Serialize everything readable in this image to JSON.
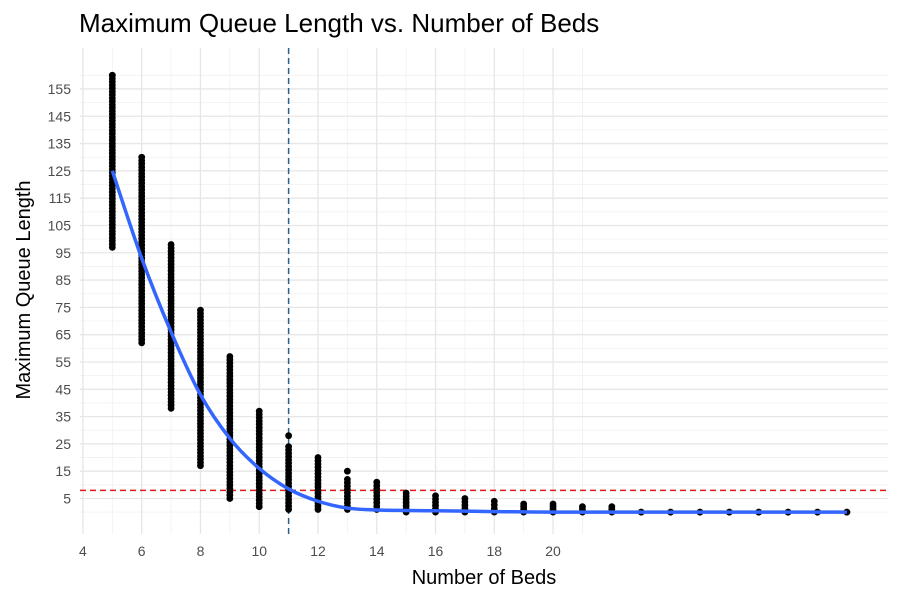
{
  "chart_data": {
    "type": "scatter",
    "title": "Maximum Queue Length vs. Number of Beds",
    "xlabel": "Number of Beds",
    "ylabel": "Maximum Queue Length",
    "xlim": [
      3.9,
      31.4
    ],
    "ylim": [
      -8,
      170
    ],
    "x_ticks": [
      4,
      6,
      8,
      10,
      12,
      14,
      16,
      18,
      20
    ],
    "y_ticks": [
      5,
      15,
      25,
      35,
      45,
      55,
      65,
      75,
      85,
      95,
      105,
      115,
      125,
      135,
      145,
      155
    ],
    "x_minor_gridlines": [
      5,
      7,
      9,
      11,
      13,
      15,
      17,
      19,
      21
    ],
    "y_minor_gridlines": [
      0,
      10,
      20,
      30,
      40,
      50,
      60,
      70,
      80,
      90,
      100,
      110,
      120,
      130,
      140,
      150,
      160
    ],
    "grid": true,
    "point_color": "#000000",
    "series": [
      {
        "type": "scatter-range",
        "points": [
          {
            "x": 5,
            "min": 97,
            "max": 160,
            "outliers": [
              160
            ]
          },
          {
            "x": 6,
            "min": 62,
            "max": 130,
            "outliers": []
          },
          {
            "x": 7,
            "min": 38,
            "max": 98,
            "outliers": []
          },
          {
            "x": 8,
            "min": 17,
            "max": 74,
            "outliers": []
          },
          {
            "x": 9,
            "min": 5,
            "max": 57,
            "outliers": []
          },
          {
            "x": 10,
            "min": 2,
            "max": 37,
            "outliers": []
          },
          {
            "x": 11,
            "min": 1,
            "max": 24,
            "outliers": [
              28
            ]
          },
          {
            "x": 12,
            "min": 1,
            "max": 20,
            "outliers": []
          },
          {
            "x": 13,
            "min": 1,
            "max": 12,
            "outliers": [
              15
            ]
          },
          {
            "x": 14,
            "min": 1,
            "max": 11,
            "outliers": []
          },
          {
            "x": 15,
            "min": 0,
            "max": 7,
            "outliers": []
          },
          {
            "x": 16,
            "min": 0,
            "max": 6,
            "outliers": []
          },
          {
            "x": 17,
            "min": 0,
            "max": 5,
            "outliers": []
          },
          {
            "x": 18,
            "min": 0,
            "max": 4,
            "outliers": []
          },
          {
            "x": 19,
            "min": 0,
            "max": 3,
            "outliers": []
          },
          {
            "x": 20,
            "min": 0,
            "max": 3,
            "outliers": []
          },
          {
            "x": 21,
            "min": 0,
            "max": 2,
            "outliers": []
          },
          {
            "x": 22,
            "min": 0,
            "max": 2,
            "outliers": []
          },
          {
            "x": 23,
            "min": 0,
            "max": 0,
            "outliers": []
          },
          {
            "x": 24,
            "min": 0,
            "max": 0,
            "outliers": []
          },
          {
            "x": 25,
            "min": 0,
            "max": 0,
            "outliers": []
          },
          {
            "x": 26,
            "min": 0,
            "max": 0,
            "outliers": []
          },
          {
            "x": 27,
            "min": 0,
            "max": 0,
            "outliers": []
          },
          {
            "x": 28,
            "min": 0,
            "max": 0,
            "outliers": []
          },
          {
            "x": 29,
            "min": 0,
            "max": 0,
            "outliers": []
          },
          {
            "x": 30,
            "min": 0,
            "max": 0,
            "outliers": []
          }
        ]
      },
      {
        "type": "smooth-line",
        "color": "#3366ff",
        "x": [
          5,
          6,
          7,
          8,
          9,
          10,
          11,
          12,
          13,
          14,
          15,
          16,
          17,
          18,
          19,
          20,
          21,
          22,
          23,
          24,
          25,
          26,
          27,
          28,
          29,
          30
        ],
        "y": [
          125,
          93,
          66,
          43,
          27,
          16,
          8.5,
          4,
          1.5,
          0.8,
          0.6,
          0.5,
          0.4,
          0.2,
          0.1,
          0,
          0,
          0,
          0,
          0,
          0,
          0,
          0,
          0,
          0,
          0
        ]
      }
    ],
    "reference_lines": [
      {
        "orientation": "vertical",
        "value": 11,
        "color": "#2c5f8a",
        "style": "dashed"
      },
      {
        "orientation": "horizontal",
        "value": 8,
        "color": "#e31a1c",
        "style": "dashed"
      }
    ]
  }
}
